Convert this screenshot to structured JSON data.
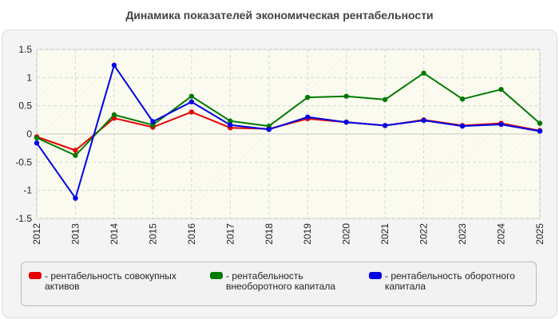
{
  "chart_data": {
    "type": "line",
    "title": "Динамика показателей экономическая рентабельности",
    "xlabel": "",
    "ylabel": "",
    "categories": [
      "2012",
      "2013",
      "2014",
      "2015",
      "2016",
      "2017",
      "2018",
      "2019",
      "2020",
      "2021",
      "2022",
      "2023",
      "2024",
      "2025"
    ],
    "ylim": [
      -1.5,
      1.5
    ],
    "yticks": [
      "1.5",
      "1",
      "0.5",
      "0",
      "-0.5",
      "-1",
      "-1.5"
    ],
    "grid": true,
    "legend_position": "bottom",
    "series": [
      {
        "name": "- рентабельность совокупных активов",
        "color": "#e60000",
        "values": [
          -0.05,
          -0.29,
          0.28,
          0.12,
          0.39,
          0.11,
          0.09,
          0.27,
          0.21,
          0.15,
          0.25,
          0.15,
          0.19,
          0.06
        ]
      },
      {
        "name": "- рентабельность внеоборотного капитала",
        "color": "#007a00",
        "values": [
          -0.07,
          -0.38,
          0.34,
          0.16,
          0.67,
          0.23,
          0.14,
          0.65,
          0.67,
          0.61,
          1.08,
          0.62,
          0.79,
          0.19
        ]
      },
      {
        "name": "- рентабельность оборотного капитала",
        "color": "#0000e6",
        "values": [
          -0.16,
          -1.14,
          1.22,
          0.22,
          0.57,
          0.16,
          0.08,
          0.3,
          0.21,
          0.15,
          0.24,
          0.14,
          0.17,
          0.05
        ]
      }
    ]
  }
}
